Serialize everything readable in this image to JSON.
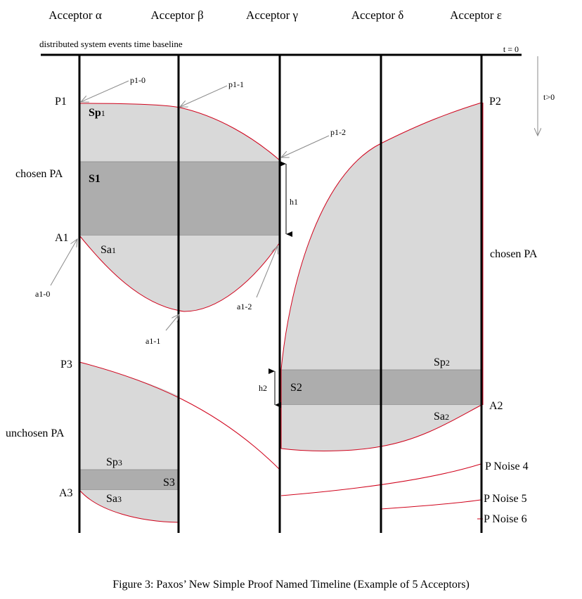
{
  "acceptors": [
    {
      "name": "Acceptor α"
    },
    {
      "name": "Acceptor β"
    },
    {
      "name": "Acceptor γ"
    },
    {
      "name": "Acceptor δ"
    },
    {
      "name": "Acceptor ε"
    }
  ],
  "baseline": {
    "label": "distributed system events time baseline",
    "t0": "t = 0",
    "tpos": "t>0"
  },
  "proposals": {
    "P1": "P1",
    "P2": "P2",
    "P3": "P3",
    "A1": "A1",
    "A2": "A2",
    "A3": "A3"
  },
  "regions": {
    "Sp1": {
      "main": "Sp",
      "sub": "1"
    },
    "S1": "S1",
    "Sa1": {
      "main": "Sa",
      "sub": "1"
    },
    "Sp2": {
      "main": "Sp",
      "sub": "2"
    },
    "S2": "S2",
    "Sa2": {
      "main": "Sa",
      "sub": "2"
    },
    "Sp3": {
      "main": "Sp",
      "sub": "3"
    },
    "S3": "S3",
    "Sa3": {
      "main": "Sa",
      "sub": "3"
    }
  },
  "pointers": {
    "p1_0": "p1-0",
    "p1_1": "p1-1",
    "p1_2": "p1-2",
    "a1_0": "a1-0",
    "a1_1": "a1-1",
    "a1_2": "a1-2"
  },
  "heights": {
    "h1": "h1",
    "h2": "h2"
  },
  "side_labels": {
    "chosen_left": "chosen PA",
    "chosen_right": "chosen PA",
    "unchosen": "unchosen PA"
  },
  "noise": {
    "n4": "P Noise 4",
    "n5": "P Noise 5",
    "n6": "P Noise 6"
  },
  "caption": "Figure 3: Paxos’ New Simple Proof Named Timeline (Example of 5 Acceptors)",
  "colors": {
    "region_light": "#d9d9d9",
    "region_dark": "#adadad",
    "curve_red": "#d0021b",
    "pointer_gray": "#8a8a8a"
  }
}
